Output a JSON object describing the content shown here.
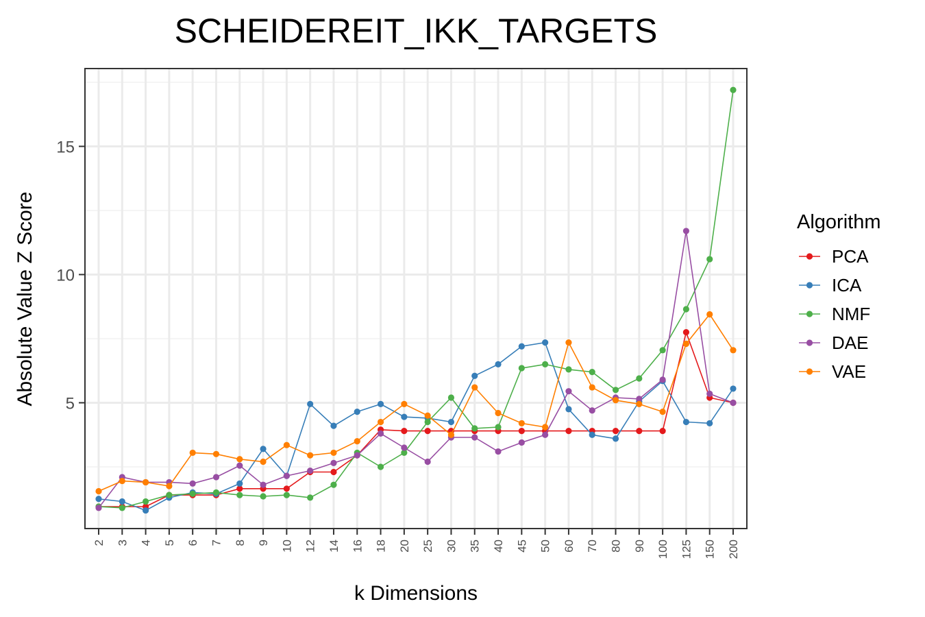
{
  "chart_data": {
    "type": "line",
    "title": "SCHEIDEREIT_IKK_TARGETS",
    "xlabel": "k Dimensions",
    "ylabel": "Absolute Value Z Score",
    "categories": [
      "2",
      "3",
      "4",
      "5",
      "6",
      "7",
      "8",
      "9",
      "10",
      "12",
      "14",
      "16",
      "18",
      "20",
      "25",
      "30",
      "35",
      "40",
      "45",
      "50",
      "60",
      "70",
      "80",
      "90",
      "100",
      "125",
      "150",
      "200"
    ],
    "ylim": [
      0,
      17.7
    ],
    "yticks": [
      5,
      10,
      15
    ],
    "grid": true,
    "legend": {
      "title": "Algorithm",
      "position": "right"
    },
    "series": [
      {
        "name": "PCA",
        "color": "#e41a1c",
        "values": [
          0.95,
          0.95,
          0.95,
          1.4,
          1.4,
          1.4,
          1.65,
          1.65,
          1.65,
          2.3,
          2.3,
          2.95,
          3.95,
          3.9,
          3.9,
          3.9,
          3.9,
          3.9,
          3.9,
          3.9,
          3.9,
          3.9,
          3.9,
          3.9,
          3.9,
          7.75,
          5.2,
          5.0
        ]
      },
      {
        "name": "ICA",
        "color": "#377eb8",
        "values": [
          1.25,
          1.15,
          0.8,
          1.3,
          1.5,
          1.45,
          1.85,
          3.2,
          2.15,
          4.95,
          4.1,
          4.65,
          4.95,
          4.45,
          4.4,
          4.25,
          6.05,
          6.5,
          7.2,
          7.35,
          4.75,
          3.75,
          3.6,
          5.05,
          5.85,
          4.25,
          4.2,
          5.55
        ]
      },
      {
        "name": "NMF",
        "color": "#4daf4a",
        "values": [
          0.95,
          0.9,
          1.15,
          1.4,
          1.45,
          1.5,
          1.4,
          1.35,
          1.4,
          1.3,
          1.8,
          3.05,
          2.5,
          3.05,
          4.25,
          5.2,
          4.0,
          4.05,
          6.35,
          6.5,
          6.3,
          6.2,
          5.5,
          5.95,
          7.05,
          8.65,
          10.6,
          17.2
        ]
      },
      {
        "name": "DAE",
        "color": "#984ea3",
        "values": [
          0.9,
          2.1,
          1.9,
          1.9,
          1.85,
          2.1,
          2.55,
          1.8,
          2.15,
          2.35,
          2.65,
          2.95,
          3.8,
          3.25,
          2.7,
          3.65,
          3.65,
          3.1,
          3.45,
          3.75,
          5.45,
          4.7,
          5.2,
          5.15,
          5.9,
          11.7,
          5.35,
          5.0
        ]
      },
      {
        "name": "VAE",
        "color": "#ff7f00",
        "values": [
          1.55,
          1.95,
          1.9,
          1.75,
          3.05,
          3.0,
          2.8,
          2.7,
          3.35,
          2.95,
          3.05,
          3.5,
          4.25,
          4.95,
          4.5,
          3.75,
          5.6,
          4.6,
          4.2,
          4.05,
          7.35,
          5.6,
          5.1,
          4.95,
          4.65,
          7.3,
          8.45,
          7.05
        ]
      }
    ]
  }
}
